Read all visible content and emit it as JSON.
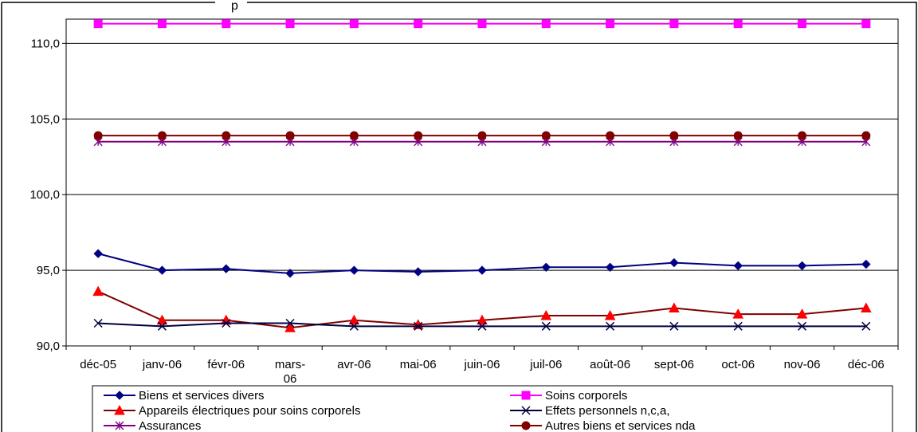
{
  "chart_data": {
    "type": "line",
    "title": "p",
    "xlabel": "",
    "ylabel": "",
    "ylim": [
      90,
      111.6
    ],
    "yticks": [
      "90,0",
      "95,0",
      "100,0",
      "105,0",
      "110,0"
    ],
    "ytick_values": [
      90,
      95,
      100,
      105,
      110
    ],
    "categories": [
      "déc-05",
      "janv-06",
      "févr-06",
      "mars-06",
      "avr-06",
      "mai-06",
      "juin-06",
      "juil-06",
      "août-06",
      "sept-06",
      "oct-06",
      "nov-06",
      "déc-06"
    ],
    "category_lines": [
      [
        "déc-05"
      ],
      [
        "janv-06"
      ],
      [
        "févr-06"
      ],
      [
        "mars-",
        "06"
      ],
      [
        "avr-06"
      ],
      [
        "mai-06"
      ],
      [
        "juin-06"
      ],
      [
        "juil-06"
      ],
      [
        "août-06"
      ],
      [
        "sept-06"
      ],
      [
        "oct-06"
      ],
      [
        "nov-06"
      ],
      [
        "déc-06"
      ]
    ],
    "grid": true,
    "legend_position": "bottom",
    "series": [
      {
        "name": "Biens et services divers",
        "color": "#000080",
        "marker": "diamond",
        "values": [
          96.1,
          95.0,
          95.1,
          94.8,
          95.0,
          94.9,
          95.0,
          95.2,
          95.2,
          95.5,
          95.3,
          95.3,
          95.4
        ]
      },
      {
        "name": "Soins corporels",
        "color": "#FF00FF",
        "marker": "square",
        "values": [
          111.3,
          111.3,
          111.3,
          111.3,
          111.3,
          111.3,
          111.3,
          111.3,
          111.3,
          111.3,
          111.3,
          111.3,
          111.3
        ]
      },
      {
        "name": "Appareils électriques pour soins corporels",
        "color": "#800000",
        "marker_color": "#FF0000",
        "marker": "triangle",
        "values": [
          93.6,
          91.7,
          91.7,
          91.2,
          91.7,
          91.4,
          91.7,
          92.0,
          92.0,
          92.5,
          92.1,
          92.1,
          92.5
        ]
      },
      {
        "name": "Effets personnels n,c,a,",
        "color": "#000040",
        "marker": "x",
        "values": [
          91.5,
          91.3,
          91.5,
          91.5,
          91.3,
          91.3,
          91.3,
          91.3,
          91.3,
          91.3,
          91.3,
          91.3,
          91.3
        ]
      },
      {
        "name": "Assurances",
        "color": "#800080",
        "marker": "star",
        "values": [
          103.5,
          103.5,
          103.5,
          103.5,
          103.5,
          103.5,
          103.5,
          103.5,
          103.5,
          103.5,
          103.5,
          103.5,
          103.5
        ]
      },
      {
        "name": "Autres biens et services nda",
        "color": "#800000",
        "marker": "circle",
        "values": [
          103.9,
          103.9,
          103.9,
          103.9,
          103.9,
          103.9,
          103.9,
          103.9,
          103.9,
          103.9,
          103.9,
          103.9,
          103.9
        ]
      }
    ]
  }
}
